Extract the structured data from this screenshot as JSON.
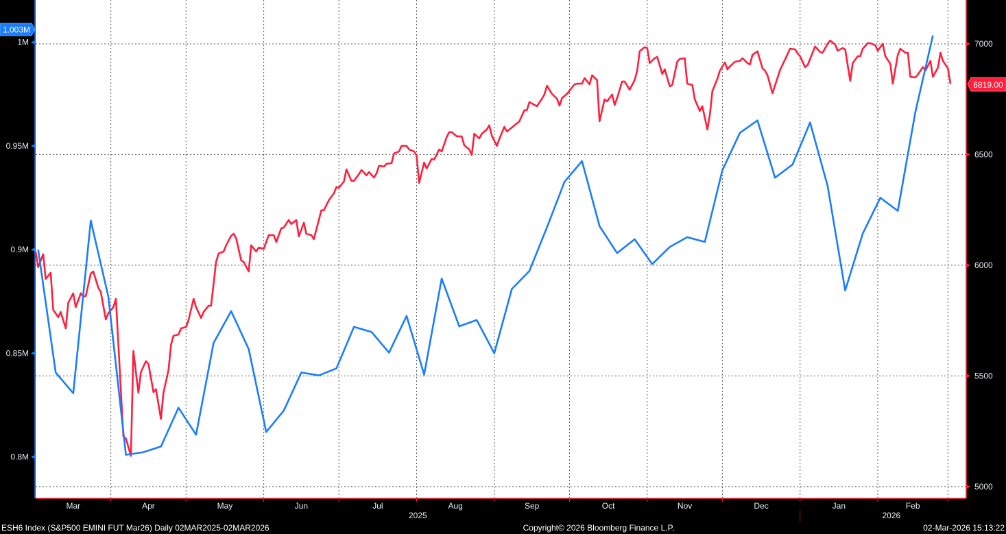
{
  "footer": {
    "security": "ESH6 Index (S&P500 EMINI FUT  Mar26) Daily 02MAR2025-02MAR2026",
    "copyright": "Copyright© 2026 Bloomberg Finance L.P.",
    "timestamp": "02-Mar-2026 15:13:22"
  },
  "colors": {
    "background": "#000000",
    "plot_bg": "#ffffff",
    "left_series": "#1a7cff",
    "right_series": "#ff1f3d",
    "grid": "#555555"
  },
  "chart_data": {
    "type": "line",
    "xlim": [
      "2025-03-02",
      "2026-03-02"
    ],
    "grid": true,
    "x_tick_labels": [
      {
        "label": "Mar",
        "start": "2025-03-02",
        "end": "2025-04-01"
      },
      {
        "label": "Apr",
        "start": "2025-04-01",
        "end": "2025-05-01"
      },
      {
        "label": "May",
        "start": "2025-05-01",
        "end": "2025-06-01"
      },
      {
        "label": "Jun",
        "start": "2025-06-01",
        "end": "2025-07-01"
      },
      {
        "label": "Jul",
        "start": "2025-07-01",
        "end": "2025-08-01"
      },
      {
        "label": "Aug",
        "start": "2025-08-01",
        "end": "2025-09-01"
      },
      {
        "label": "Sep",
        "start": "2025-09-01",
        "end": "2025-10-01"
      },
      {
        "label": "Oct",
        "start": "2025-10-01",
        "end": "2025-11-01"
      },
      {
        "label": "Nov",
        "start": "2025-11-01",
        "end": "2025-12-01"
      },
      {
        "label": "Dec",
        "start": "2025-12-01",
        "end": "2026-01-01"
      },
      {
        "label": "Jan",
        "start": "2026-01-01",
        "end": "2026-02-01"
      },
      {
        "label": "Feb",
        "start": "2026-02-01",
        "end": "2026-03-01"
      }
    ],
    "year_labels": [
      {
        "label": "2025",
        "start": "2025-03-02",
        "end": "2026-01-01"
      },
      {
        "label": "2026",
        "start": "2026-01-01",
        "end": "2026-03-09"
      }
    ],
    "left_axis": {
      "ylim": [
        0.78,
        1.0204
      ],
      "ticks": [
        {
          "value": 1.0,
          "label": "1M"
        },
        {
          "value": 0.95,
          "label": "0.95M"
        },
        {
          "value": 0.9,
          "label": "0.9M"
        },
        {
          "value": 0.85,
          "label": "0.85M"
        },
        {
          "value": 0.8,
          "label": "0.8M"
        }
      ],
      "last_value_label": "1.003M"
    },
    "right_axis": {
      "ylim": [
        4947,
        7198
      ],
      "ticks": [
        {
          "value": 7000,
          "label": "7000"
        },
        {
          "value": 6500,
          "label": "6500"
        },
        {
          "value": 6000,
          "label": "6000"
        },
        {
          "value": 5500,
          "label": "5500"
        },
        {
          "value": 5000,
          "label": "5000"
        }
      ],
      "last_value_label": "6819.00"
    },
    "series": [
      {
        "axis": "left",
        "color": "#1a7cff",
        "x": [
          "2025-03-03",
          "2025-03-10",
          "2025-03-17",
          "2025-03-24",
          "2025-03-31",
          "2025-04-07",
          "2025-04-14",
          "2025-04-21",
          "2025-04-28",
          "2025-05-05",
          "2025-05-12",
          "2025-05-19",
          "2025-05-26",
          "2025-06-02",
          "2025-06-09",
          "2025-06-16",
          "2025-06-23",
          "2025-06-30",
          "2025-07-07",
          "2025-07-14",
          "2025-07-21",
          "2025-07-28",
          "2025-08-04",
          "2025-08-11",
          "2025-08-18",
          "2025-08-25",
          "2025-09-01",
          "2025-09-08",
          "2025-09-15",
          "2025-09-22",
          "2025-09-29",
          "2025-10-06",
          "2025-10-13",
          "2025-10-20",
          "2025-10-27",
          "2025-11-03",
          "2025-11-10",
          "2025-11-17",
          "2025-11-24",
          "2025-12-01",
          "2025-12-08",
          "2025-12-15",
          "2025-12-22",
          "2025-12-29",
          "2026-01-05",
          "2026-01-12",
          "2026-01-19",
          "2026-01-26",
          "2026-02-02",
          "2026-02-09",
          "2026-02-16",
          "2026-02-23"
        ],
        "y": [
          0.9,
          0.8407,
          0.8307,
          0.914,
          0.8773,
          0.801,
          0.8023,
          0.805,
          0.8237,
          0.8107,
          0.855,
          0.8703,
          0.852,
          0.812,
          0.8223,
          0.8407,
          0.8393,
          0.8427,
          0.8627,
          0.8603,
          0.8503,
          0.868,
          0.8397,
          0.886,
          0.863,
          0.866,
          0.85,
          0.881,
          0.8897,
          0.9107,
          0.9327,
          0.9427,
          0.9113,
          0.8983,
          0.905,
          0.893,
          0.9013,
          0.906,
          0.9037,
          0.9383,
          0.9563,
          0.9623,
          0.9347,
          0.941,
          0.9613,
          0.9307,
          0.8803,
          0.9077,
          0.925,
          0.9187,
          0.9663,
          1.0033
        ]
      },
      {
        "axis": "right",
        "color": "#ff1f3d",
        "x": [
          "2025-03-02",
          "2025-03-03",
          "2025-03-05",
          "2025-03-06",
          "2025-03-08",
          "2025-03-09",
          "2025-03-11",
          "2025-03-12",
          "2025-03-14",
          "2025-03-15",
          "2025-03-17",
          "2025-03-18",
          "2025-03-20",
          "2025-03-21",
          "2025-03-22",
          "2025-03-24",
          "2025-03-25",
          "2025-03-27",
          "2025-03-28",
          "2025-03-30",
          "2025-03-31",
          "2025-04-02",
          "2025-04-03",
          "2025-04-06",
          "2025-04-07",
          "2025-04-09",
          "2025-04-10",
          "2025-04-12",
          "2025-04-13",
          "2025-04-15",
          "2025-04-16",
          "2025-04-18",
          "2025-04-19",
          "2025-04-21",
          "2025-04-22",
          "2025-04-24",
          "2025-04-25",
          "2025-04-26",
          "2025-04-28",
          "2025-04-29",
          "2025-05-01",
          "2025-05-02",
          "2025-05-04",
          "2025-05-05",
          "2025-05-07",
          "2025-05-08",
          "2025-05-10",
          "2025-05-11",
          "2025-05-13",
          "2025-05-14",
          "2025-05-16",
          "2025-05-17",
          "2025-05-19",
          "2025-05-20",
          "2025-05-21",
          "2025-05-23",
          "2025-05-24",
          "2025-05-26",
          "2025-05-27",
          "2025-05-29",
          "2025-05-30",
          "2025-06-01",
          "2025-06-03",
          "2025-06-05",
          "2025-06-06",
          "2025-06-08",
          "2025-06-09",
          "2025-06-11",
          "2025-06-12",
          "2025-06-14",
          "2025-06-15",
          "2025-06-17",
          "2025-06-18",
          "2025-06-20",
          "2025-06-21",
          "2025-06-24",
          "2025-06-25",
          "2025-06-27",
          "2025-06-29",
          "2025-06-30",
          "2025-07-01",
          "2025-07-03",
          "2025-07-04",
          "2025-07-06",
          "2025-07-07",
          "2025-07-09",
          "2025-07-10",
          "2025-07-12",
          "2025-07-13",
          "2025-07-15",
          "2025-07-16",
          "2025-07-17",
          "2025-07-19",
          "2025-07-20",
          "2025-07-22",
          "2025-07-23",
          "2025-07-25",
          "2025-07-26",
          "2025-07-28",
          "2025-07-29",
          "2025-07-31",
          "2025-08-01",
          "2025-08-02",
          "2025-08-04",
          "2025-08-05",
          "2025-08-07",
          "2025-08-08",
          "2025-08-10",
          "2025-08-11",
          "2025-08-13",
          "2025-08-14",
          "2025-08-15",
          "2025-08-17",
          "2025-08-19",
          "2025-08-20",
          "2025-08-22",
          "2025-08-23",
          "2025-08-24",
          "2025-08-26",
          "2025-08-27",
          "2025-08-29",
          "2025-08-30",
          "2025-08-31",
          "2025-09-02",
          "2025-09-03",
          "2025-09-05",
          "2025-09-06",
          "2025-09-08",
          "2025-09-11",
          "2025-09-13",
          "2025-09-14",
          "2025-09-15",
          "2025-09-18",
          "2025-09-20",
          "2025-09-21",
          "2025-09-22",
          "2025-09-24",
          "2025-09-26",
          "2025-09-27",
          "2025-09-28",
          "2025-09-30",
          "2025-10-03",
          "2025-10-04",
          "2025-10-06",
          "2025-10-07",
          "2025-10-09",
          "2025-10-10",
          "2025-10-12",
          "2025-10-13",
          "2025-10-15",
          "2025-10-16",
          "2025-10-18",
          "2025-10-19",
          "2025-10-20",
          "2025-10-22",
          "2025-10-23",
          "2025-10-25",
          "2025-10-27",
          "2025-10-28",
          "2025-10-29",
          "2025-10-31",
          "2025-11-01",
          "2025-11-02",
          "2025-11-04",
          "2025-11-05",
          "2025-11-07",
          "2025-11-08",
          "2025-11-10",
          "2025-11-11",
          "2025-11-13",
          "2025-11-14",
          "2025-11-16",
          "2025-11-17",
          "2025-11-19",
          "2025-11-20",
          "2025-11-22",
          "2025-11-23",
          "2025-11-25",
          "2025-11-26",
          "2025-11-27",
          "2025-11-29",
          "2025-11-30",
          "2025-12-02",
          "2025-12-03",
          "2025-12-04",
          "2025-12-06",
          "2025-12-08",
          "2025-12-09",
          "2025-12-11",
          "2025-12-12",
          "2025-12-13",
          "2025-12-15",
          "2025-12-17",
          "2025-12-18",
          "2025-12-19",
          "2025-12-21",
          "2025-12-24",
          "2025-12-26",
          "2025-12-28",
          "2025-12-30",
          "2025-12-31",
          "2026-01-01",
          "2026-01-03",
          "2026-01-04",
          "2026-01-07",
          "2026-01-09",
          "2026-01-10",
          "2026-01-12",
          "2026-01-13",
          "2026-01-15",
          "2026-01-16",
          "2026-01-18",
          "2026-01-19",
          "2026-01-21",
          "2026-01-22",
          "2026-01-24",
          "2026-01-25",
          "2026-01-26",
          "2026-01-28",
          "2026-01-29",
          "2026-01-31",
          "2026-02-01",
          "2026-02-03",
          "2026-02-04",
          "2026-02-06",
          "2026-02-07",
          "2026-02-09",
          "2026-02-10",
          "2026-02-12",
          "2026-02-13",
          "2026-02-14",
          "2026-02-16",
          "2026-02-17",
          "2026-02-19",
          "2026-02-20",
          "2026-02-22",
          "2026-02-23",
          "2026-02-25",
          "2026-02-26",
          "2026-02-27",
          "2026-03-01",
          "2026-03-02"
        ],
        "y": [
          6062,
          5991,
          6050,
          5938,
          5966,
          5799,
          5765,
          5789,
          5715,
          5830,
          5873,
          5811,
          5873,
          5858,
          5861,
          5963,
          5972,
          5898,
          5879,
          5755,
          5783,
          5811,
          5848,
          5226,
          5217,
          5139,
          5613,
          5424,
          5517,
          5567,
          5554,
          5427,
          5440,
          5306,
          5424,
          5526,
          5641,
          5681,
          5687,
          5715,
          5721,
          5752,
          5848,
          5811,
          5762,
          5789,
          5817,
          5817,
          6015,
          6053,
          6062,
          6090,
          6133,
          6142,
          6121,
          6022,
          6015,
          5972,
          6090,
          6062,
          6080,
          6074,
          6136,
          6136,
          6105,
          6167,
          6170,
          6204,
          6186,
          6204,
          6130,
          6192,
          6142,
          6136,
          6118,
          6248,
          6248,
          6294,
          6325,
          6353,
          6350,
          6378,
          6433,
          6381,
          6381,
          6412,
          6430,
          6406,
          6421,
          6396,
          6415,
          6449,
          6446,
          6458,
          6461,
          6505,
          6514,
          6539,
          6539,
          6523,
          6514,
          6495,
          6372,
          6464,
          6437,
          6480,
          6477,
          6523,
          6514,
          6579,
          6601,
          6601,
          6582,
          6582,
          6542,
          6523,
          6498,
          6594,
          6573,
          6594,
          6613,
          6632,
          6585,
          6539,
          6570,
          6625,
          6604,
          6622,
          6650,
          6700,
          6700,
          6737,
          6718,
          6752,
          6771,
          6811,
          6774,
          6752,
          6721,
          6755,
          6774,
          6817,
          6820,
          6820,
          6845,
          6817,
          6858,
          6836,
          6650,
          6749,
          6740,
          6771,
          6724,
          6755,
          6830,
          6830,
          6793,
          6836,
          6879,
          6966,
          6985,
          6981,
          6913,
          6935,
          6941,
          6864,
          6885,
          6808,
          6814,
          6920,
          6932,
          6935,
          6820,
          6814,
          6749,
          6697,
          6718,
          6613,
          6678,
          6786,
          6842,
          6879,
          6916,
          6885,
          6898,
          6919,
          6923,
          6935,
          6913,
          6907,
          6950,
          6966,
          6889,
          6879,
          6858,
          6777,
          6882,
          6929,
          6978,
          6975,
          6957,
          6944,
          6895,
          6904,
          6988,
          6963,
          6960,
          7000,
          7015,
          6997,
          6969,
          6981,
          6975,
          6833,
          6913,
          6944,
          6944,
          6978,
          7003,
          7003,
          6994,
          6969,
          7000,
          6944,
          6910,
          6820,
          6950,
          6978,
          6960,
          6960,
          6851,
          6848,
          6861,
          6895,
          6879,
          6923,
          6851,
          6892,
          6960,
          6923,
          6889,
          6819
        ]
      }
    ]
  }
}
